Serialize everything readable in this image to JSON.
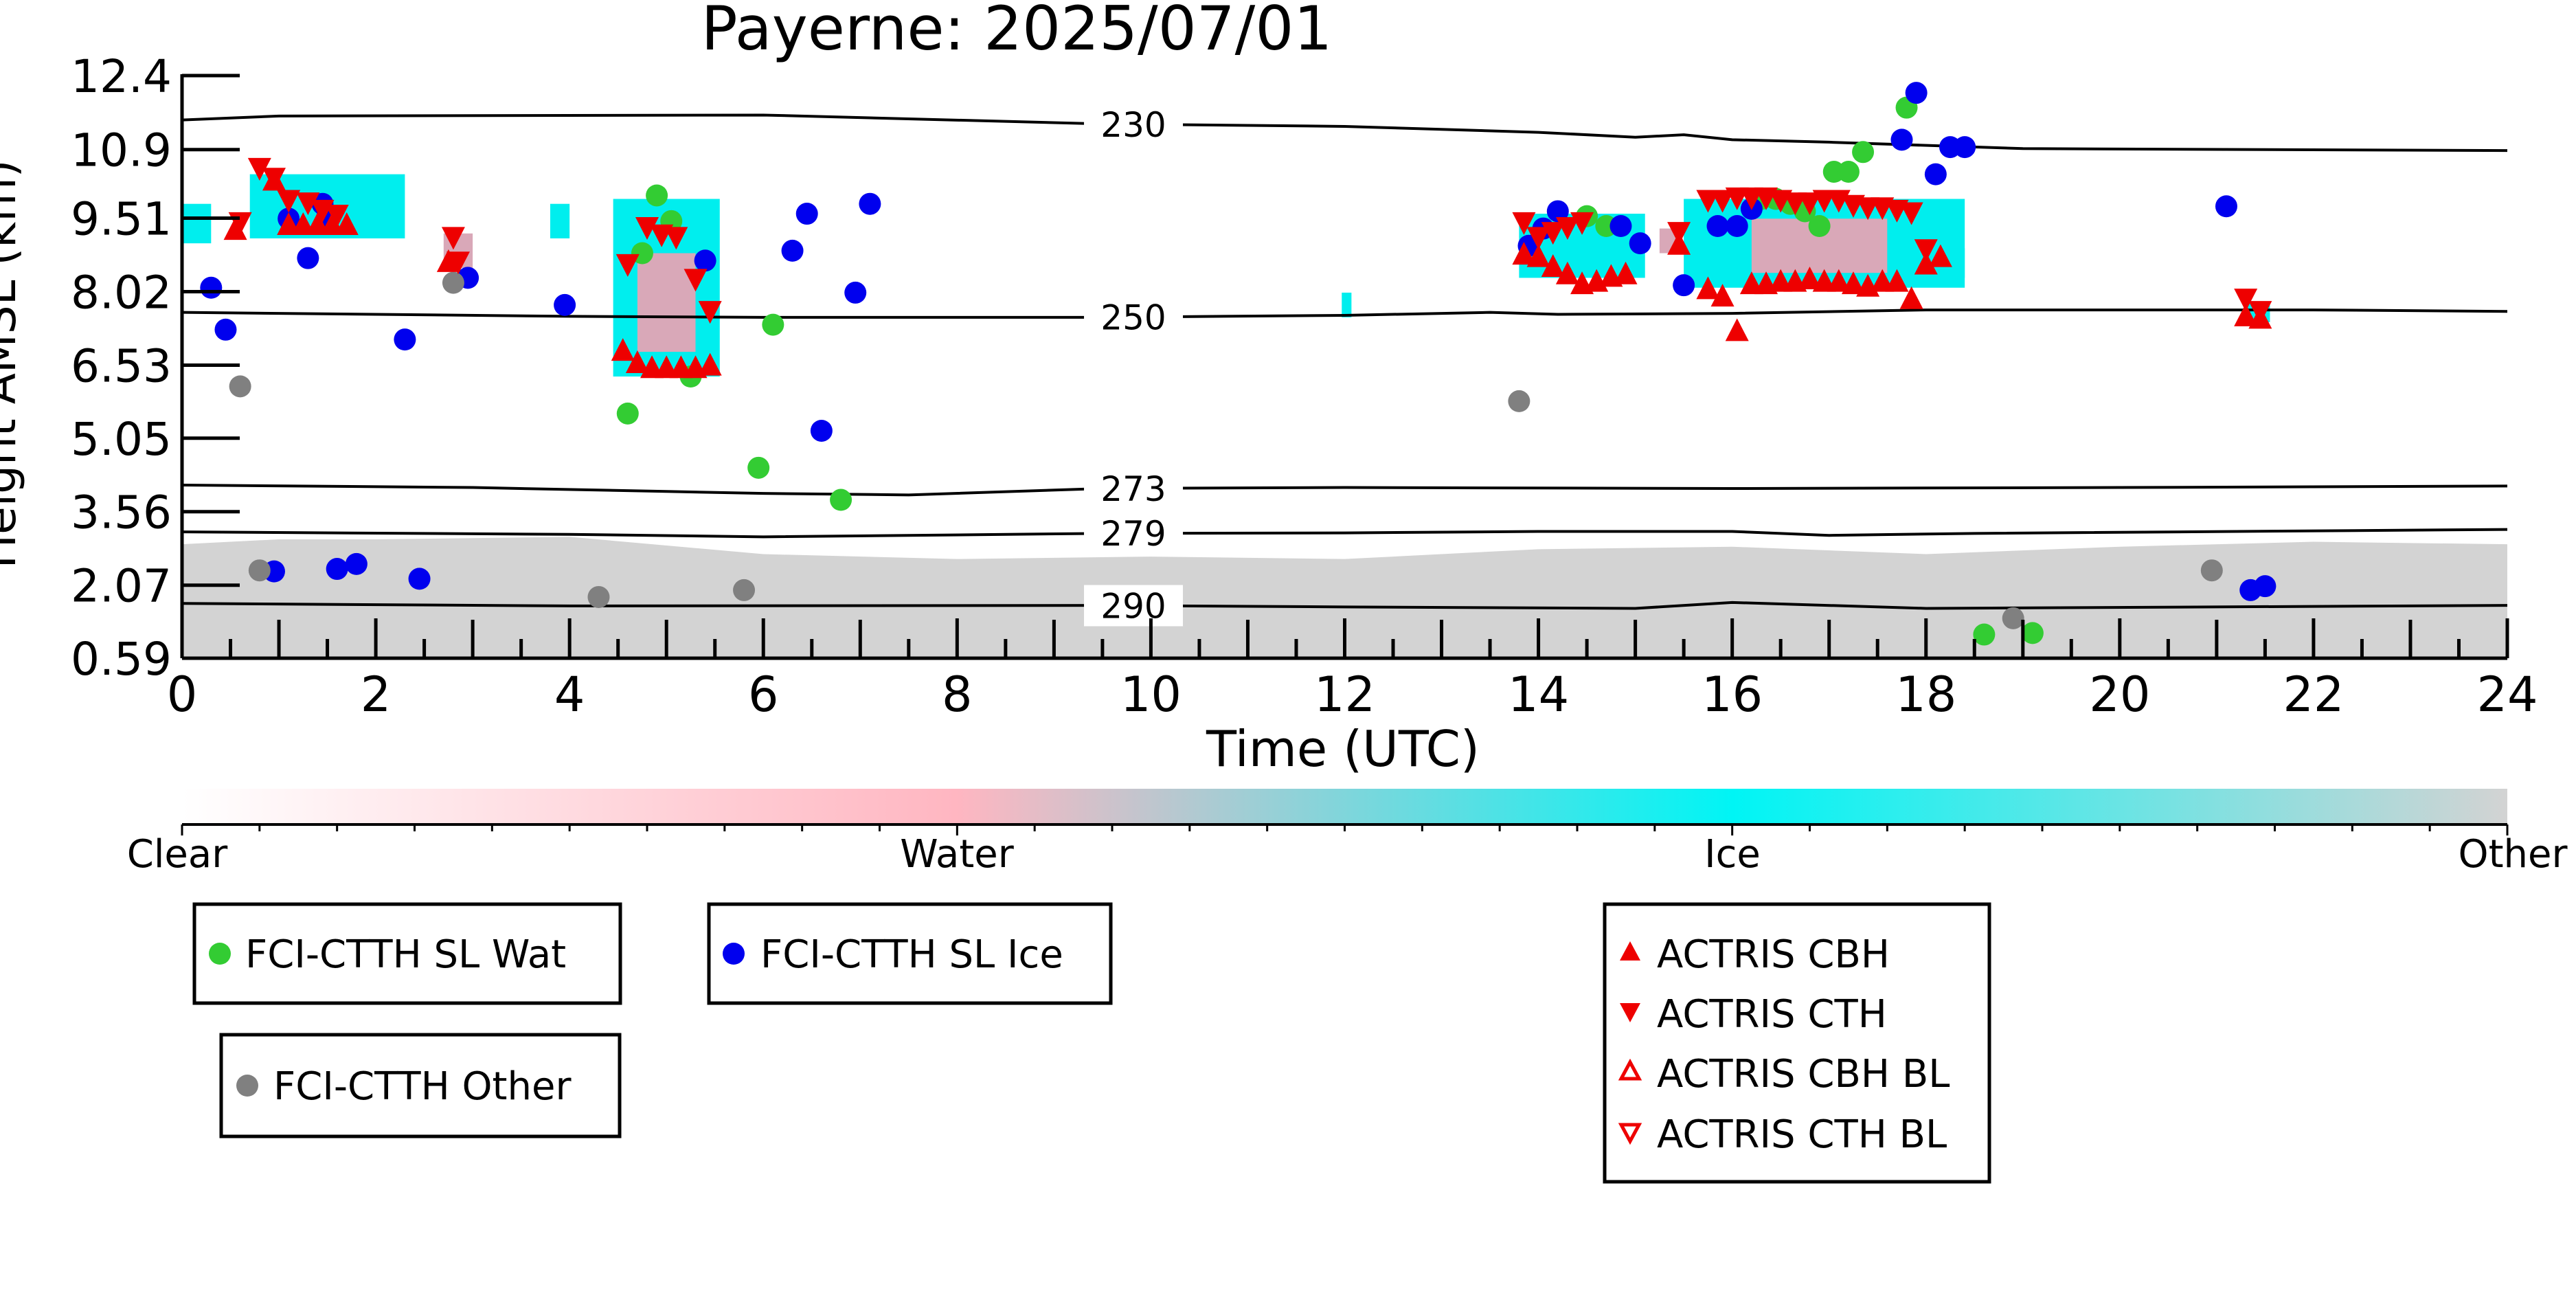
{
  "chart_data": {
    "type": "scatter",
    "title": "Payerne: 2025/07/01",
    "xlabel": "Time (UTC)",
    "ylabel": "Height AMSL (km)",
    "xlim": [
      0,
      24
    ],
    "ylim": [
      0.59,
      12.4
    ],
    "x_ticks": [
      "0",
      "2",
      "4",
      "6",
      "8",
      "10",
      "12",
      "14",
      "16",
      "18",
      "20",
      "22",
      "24"
    ],
    "y_ticks": [
      "12.4",
      "10.9",
      "9.51",
      "8.02",
      "6.53",
      "5.05",
      "3.56",
      "2.07",
      "0.59"
    ],
    "grid": false,
    "colorbar": {
      "labels": [
        "Clear",
        "Water",
        "Ice",
        "Other"
      ],
      "colors": [
        "#ffffff",
        "#ffb6c1",
        "#00f5f5",
        "#d3d3d3"
      ]
    },
    "background_colors": {
      "ice": "#00eeee",
      "mixed": "#d9a8b8",
      "low_cloud": "#d3d3d3"
    },
    "isotherms": [
      {
        "label": "230",
        "label_x": 9.82,
        "points": [
          [
            0,
            11.5
          ],
          [
            1,
            11.58
          ],
          [
            6,
            11.6
          ],
          [
            9.5,
            11.42
          ],
          [
            12,
            11.37
          ],
          [
            14,
            11.25
          ],
          [
            15,
            11.15
          ],
          [
            15.5,
            11.2
          ],
          [
            16,
            11.1
          ],
          [
            17,
            11.05
          ],
          [
            19,
            10.92
          ],
          [
            24,
            10.88
          ]
        ]
      },
      {
        "label": "250",
        "label_x": 9.82,
        "points": [
          [
            0,
            7.6
          ],
          [
            4,
            7.52
          ],
          [
            6,
            7.5
          ],
          [
            9.5,
            7.5
          ],
          [
            12,
            7.54
          ],
          [
            13.5,
            7.6
          ],
          [
            14.2,
            7.56
          ],
          [
            16,
            7.58
          ],
          [
            18,
            7.65
          ],
          [
            22,
            7.65
          ],
          [
            24,
            7.62
          ]
        ]
      },
      {
        "label": "273",
        "label_x": 9.82,
        "points": [
          [
            0,
            4.1
          ],
          [
            3,
            4.05
          ],
          [
            5,
            3.97
          ],
          [
            6,
            3.93
          ],
          [
            7.5,
            3.9
          ],
          [
            9.5,
            4.03
          ],
          [
            12,
            4.05
          ],
          [
            16,
            4.03
          ],
          [
            20,
            4.05
          ],
          [
            24,
            4.08
          ]
        ]
      },
      {
        "label": "279",
        "label_x": 9.82,
        "points": [
          [
            0,
            3.15
          ],
          [
            4,
            3.1
          ],
          [
            6,
            3.05
          ],
          [
            9.5,
            3.12
          ],
          [
            12,
            3.13
          ],
          [
            14,
            3.16
          ],
          [
            16,
            3.16
          ],
          [
            17,
            3.08
          ],
          [
            18.5,
            3.12
          ],
          [
            24,
            3.2
          ]
        ]
      },
      {
        "label": "290",
        "label_x": 9.82,
        "points": [
          [
            0,
            1.7
          ],
          [
            4,
            1.65
          ],
          [
            9.5,
            1.66
          ],
          [
            12,
            1.63
          ],
          [
            15,
            1.6
          ],
          [
            16,
            1.72
          ],
          [
            18,
            1.6
          ],
          [
            24,
            1.66
          ]
        ]
      }
    ],
    "legend": [
      {
        "label": "FCI-CTTH SL Wat",
        "color": "#33cc33",
        "marker": "circle"
      },
      {
        "label": "FCI-CTTH SL Ice",
        "color": "#0000ee",
        "marker": "circle"
      },
      {
        "label": "FCI-CTTH Other",
        "color": "#808080",
        "marker": "circle"
      },
      {
        "label": "ACTRIS CBH",
        "color": "#ee0000",
        "marker": "triangle-up"
      },
      {
        "label": "ACTRIS CTH",
        "color": "#ee0000",
        "marker": "triangle-down"
      },
      {
        "label": "ACTRIS CBH BL",
        "color": "#ee0000",
        "marker": "triangle-up-open"
      },
      {
        "label": "ACTRIS CTH BL",
        "color": "#ee0000",
        "marker": "triangle-down-open"
      }
    ],
    "series": [
      {
        "name": "FCI-CTTH SL Wat",
        "color": "#33cc33",
        "marker": "circle",
        "points": [
          [
            4.6,
            5.55
          ],
          [
            4.9,
            9.97
          ],
          [
            5.05,
            9.45
          ],
          [
            4.75,
            8.8
          ],
          [
            5.25,
            6.3
          ],
          [
            6.1,
            7.35
          ],
          [
            5.95,
            4.45
          ],
          [
            6.8,
            3.8
          ],
          [
            14.5,
            9.55
          ],
          [
            14.7,
            9.35
          ],
          [
            16.3,
            9.9
          ],
          [
            16.45,
            9.9
          ],
          [
            16.6,
            9.8
          ],
          [
            16.75,
            9.65
          ],
          [
            16.9,
            9.35
          ],
          [
            17.05,
            10.45
          ],
          [
            17.2,
            10.45
          ],
          [
            17.35,
            10.85
          ],
          [
            17.8,
            11.75
          ],
          [
            18.6,
            1.07
          ],
          [
            19.1,
            1.1
          ]
        ]
      },
      {
        "name": "FCI-CTTH SL Ice",
        "color": "#0000ee",
        "marker": "circle",
        "points": [
          [
            0.3,
            8.1
          ],
          [
            0.45,
            7.25
          ],
          [
            1.1,
            9.5
          ],
          [
            1.3,
            8.7
          ],
          [
            1.45,
            9.8
          ],
          [
            1.5,
            9.55
          ],
          [
            2.3,
            7.05
          ],
          [
            2.95,
            8.3
          ],
          [
            3.95,
            7.75
          ],
          [
            5.4,
            8.65
          ],
          [
            6.3,
            8.85
          ],
          [
            6.45,
            9.6
          ],
          [
            6.6,
            5.2
          ],
          [
            6.95,
            8.0
          ],
          [
            7.1,
            9.8
          ],
          [
            0.95,
            2.35
          ],
          [
            1.6,
            2.4
          ],
          [
            1.8,
            2.5
          ],
          [
            2.45,
            2.2
          ],
          [
            13.9,
            8.95
          ],
          [
            14.05,
            9.3
          ],
          [
            14.2,
            9.65
          ],
          [
            14.85,
            9.35
          ],
          [
            15.05,
            9.0
          ],
          [
            15.5,
            8.15
          ],
          [
            15.85,
            9.35
          ],
          [
            16.05,
            9.35
          ],
          [
            16.2,
            9.7
          ],
          [
            17.9,
            12.05
          ],
          [
            17.75,
            11.1
          ],
          [
            18.1,
            10.4
          ],
          [
            18.25,
            10.95
          ],
          [
            18.4,
            10.95
          ],
          [
            21.1,
            9.75
          ],
          [
            21.35,
            1.97
          ],
          [
            21.5,
            2.05
          ]
        ]
      },
      {
        "name": "FCI-CTTH Other",
        "color": "#808080",
        "marker": "circle",
        "points": [
          [
            0.6,
            6.1
          ],
          [
            2.8,
            8.2
          ],
          [
            0.8,
            2.37
          ],
          [
            4.3,
            1.83
          ],
          [
            5.8,
            1.97
          ],
          [
            13.8,
            5.8
          ],
          [
            18.9,
            1.4
          ],
          [
            20.95,
            2.37
          ]
        ]
      },
      {
        "name": "ACTRIS CBH",
        "color": "#ee0000",
        "marker": "triangle-up",
        "points": [
          [
            0.55,
            9.25
          ],
          [
            0.95,
            10.25
          ],
          [
            1.1,
            9.35
          ],
          [
            1.25,
            9.35
          ],
          [
            1.4,
            9.35
          ],
          [
            1.55,
            9.35
          ],
          [
            1.7,
            9.35
          ],
          [
            2.75,
            8.6
          ],
          [
            4.55,
            6.8
          ],
          [
            4.7,
            6.55
          ],
          [
            4.85,
            6.45
          ],
          [
            5.0,
            6.45
          ],
          [
            5.15,
            6.45
          ],
          [
            5.3,
            6.45
          ],
          [
            5.45,
            6.5
          ],
          [
            13.85,
            8.75
          ],
          [
            14.0,
            8.7
          ],
          [
            14.15,
            8.5
          ],
          [
            14.3,
            8.35
          ],
          [
            14.45,
            8.15
          ],
          [
            14.6,
            8.2
          ],
          [
            14.75,
            8.3
          ],
          [
            14.9,
            8.35
          ],
          [
            15.45,
            8.95
          ],
          [
            15.75,
            8.05
          ],
          [
            15.9,
            7.9
          ],
          [
            16.05,
            7.2
          ],
          [
            16.2,
            8.15
          ],
          [
            16.35,
            8.15
          ],
          [
            16.5,
            8.2
          ],
          [
            16.65,
            8.2
          ],
          [
            16.8,
            8.25
          ],
          [
            16.95,
            8.2
          ],
          [
            17.1,
            8.2
          ],
          [
            17.25,
            8.15
          ],
          [
            17.4,
            8.1
          ],
          [
            17.55,
            8.2
          ],
          [
            17.7,
            8.2
          ],
          [
            17.85,
            7.85
          ],
          [
            18.0,
            8.55
          ],
          [
            18.15,
            8.7
          ],
          [
            21.3,
            7.5
          ],
          [
            21.45,
            7.45
          ]
        ]
      },
      {
        "name": "ACTRIS CTH",
        "color": "#ee0000",
        "marker": "triangle-down",
        "points": [
          [
            0.6,
            9.45
          ],
          [
            0.8,
            10.55
          ],
          [
            0.95,
            10.35
          ],
          [
            1.1,
            9.9
          ],
          [
            1.3,
            9.85
          ],
          [
            1.45,
            9.7
          ],
          [
            1.6,
            9.6
          ],
          [
            2.8,
            9.15
          ],
          [
            2.85,
            8.65
          ],
          [
            4.6,
            8.6
          ],
          [
            4.8,
            9.35
          ],
          [
            4.95,
            9.2
          ],
          [
            5.1,
            9.15
          ],
          [
            5.3,
            8.3
          ],
          [
            5.45,
            7.65
          ],
          [
            13.85,
            9.45
          ],
          [
            14.0,
            9.15
          ],
          [
            14.15,
            9.25
          ],
          [
            14.3,
            9.35
          ],
          [
            14.45,
            9.45
          ],
          [
            15.45,
            9.25
          ],
          [
            15.75,
            9.9
          ],
          [
            15.9,
            9.9
          ],
          [
            16.05,
            9.95
          ],
          [
            16.2,
            9.95
          ],
          [
            16.35,
            9.95
          ],
          [
            16.5,
            9.9
          ],
          [
            16.65,
            9.85
          ],
          [
            16.8,
            9.85
          ],
          [
            16.95,
            9.9
          ],
          [
            17.1,
            9.9
          ],
          [
            17.25,
            9.8
          ],
          [
            17.4,
            9.75
          ],
          [
            17.55,
            9.75
          ],
          [
            17.7,
            9.7
          ],
          [
            17.85,
            9.65
          ],
          [
            18.0,
            8.9
          ],
          [
            21.3,
            7.9
          ],
          [
            21.45,
            7.65
          ]
        ]
      },
      {
        "name": "ACTRIS CBH BL",
        "color": "#ee0000",
        "marker": "triangle-up-open",
        "points": []
      },
      {
        "name": "ACTRIS CTH BL",
        "color": "#ee0000",
        "marker": "triangle-down-open",
        "points": []
      }
    ]
  }
}
